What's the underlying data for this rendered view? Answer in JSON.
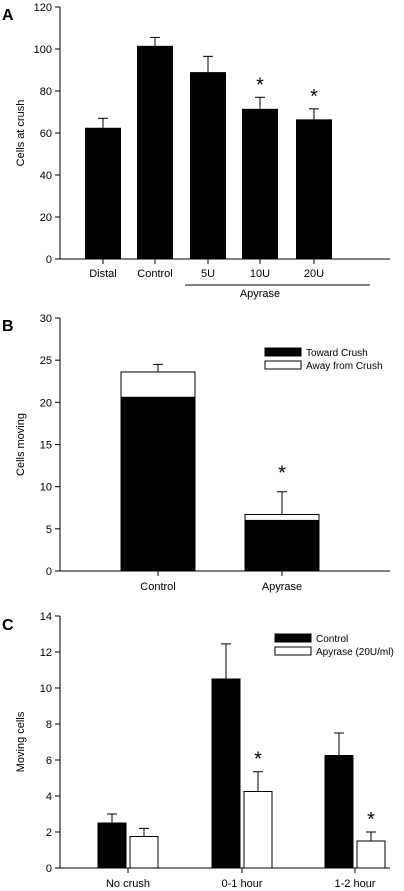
{
  "chart_data": [
    {
      "type": "bar",
      "panel_label": "A",
      "ylabel": "Cells at crush",
      "ylim": [
        0,
        120
      ],
      "yticks": [
        0,
        20,
        40,
        60,
        80,
        100,
        120
      ],
      "categories": [
        "Distal",
        "Control",
        "5U",
        "10U",
        "20U"
      ],
      "values": [
        62.5,
        101.5,
        89,
        71.5,
        66.5
      ],
      "errors": [
        4.5,
        4,
        7.5,
        5.5,
        5
      ],
      "significant": [
        false,
        false,
        false,
        true,
        true
      ],
      "significance_marker": "*",
      "group_label": "Apyrase",
      "bar_color": "#000000"
    },
    {
      "type": "bar",
      "stacked": true,
      "panel_label": "B",
      "ylabel": "Cells moving",
      "ylim": [
        0,
        30
      ],
      "yticks": [
        0,
        5,
        10,
        15,
        20,
        25,
        30
      ],
      "categories": [
        "Control",
        "Apyrase"
      ],
      "series": [
        {
          "name": "Toward Crush",
          "values": [
            20.6,
            6.0
          ],
          "color": "#000000"
        },
        {
          "name": "Away from Crush",
          "values": [
            3.0,
            0.7
          ],
          "color": "#ffffff"
        }
      ],
      "errors": [
        0.9,
        2.7
      ],
      "significant": [
        false,
        true
      ],
      "significance_marker": "*",
      "legend": "top-right"
    },
    {
      "type": "bar",
      "panel_label": "C",
      "ylabel": "Moving cells",
      "ylim": [
        0,
        14
      ],
      "yticks": [
        0,
        2,
        4,
        6,
        8,
        10,
        12,
        14
      ],
      "categories": [
        "No crush",
        "0-1 hour",
        "1-2 hour"
      ],
      "series": [
        {
          "name": "Control",
          "values": [
            2.5,
            10.5,
            6.25
          ],
          "errors": [
            0.5,
            1.95,
            1.25
          ],
          "color": "#000000"
        },
        {
          "name": "Apyrase (20U/ml)",
          "values": [
            1.75,
            4.25,
            1.5
          ],
          "errors": [
            0.45,
            1.1,
            0.5
          ],
          "color": "#ffffff"
        }
      ],
      "significant": [
        [
          false,
          false
        ],
        [
          false,
          true
        ],
        [
          false,
          true
        ]
      ],
      "significance_marker": "*",
      "legend": "top-right"
    }
  ]
}
